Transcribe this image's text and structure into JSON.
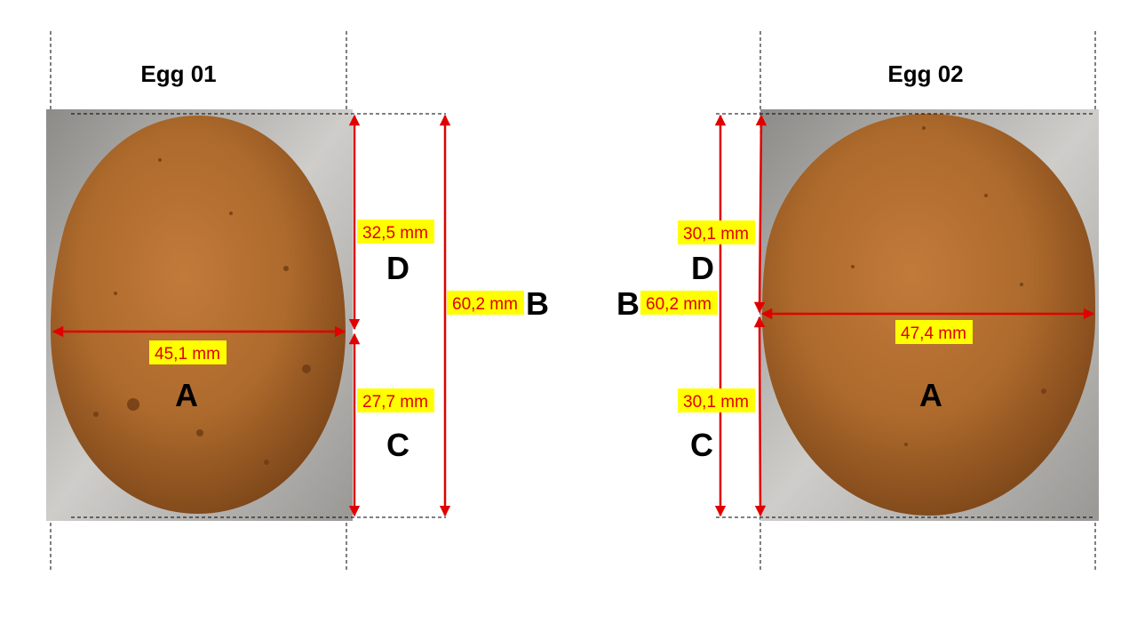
{
  "eggs": [
    {
      "title": "Egg 01",
      "width": "45,1 mm",
      "height": "60,2 mm",
      "upper": "32,5 mm",
      "lower": "27,7 mm",
      "labels": {
        "width": "A",
        "height": "B",
        "lower": "C",
        "upper": "D"
      }
    },
    {
      "title": "Egg 02",
      "width": "47,4 mm",
      "height": "60,2 mm",
      "upper": "30,1 mm",
      "lower": "30,1 mm",
      "labels": {
        "width": "A",
        "height": "B",
        "lower": "C",
        "upper": "D"
      }
    }
  ],
  "colors": {
    "measurement_text": "#e00000",
    "highlight": "#ffff00",
    "egg_shell": "#a8642a",
    "background_photo": "#9a9a98"
  }
}
